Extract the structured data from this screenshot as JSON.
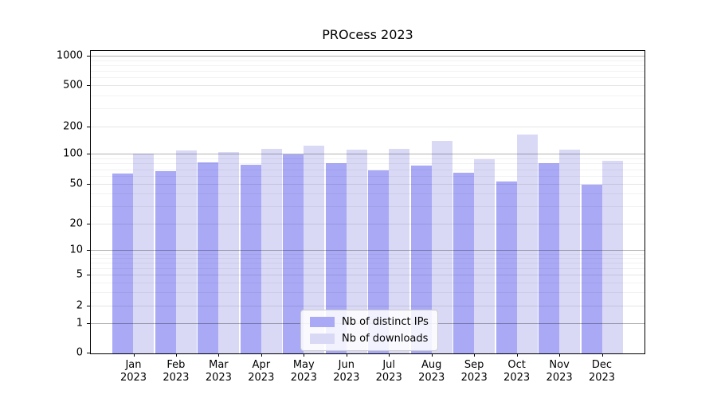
{
  "chart_data": {
    "type": "bar",
    "title": "PROcess 2023",
    "categories": [
      "Jan",
      "Feb",
      "Mar",
      "Apr",
      "May",
      "Jun",
      "Jul",
      "Aug",
      "Sep",
      "Oct",
      "Nov",
      "Dec"
    ],
    "category_year": "2023",
    "series": [
      {
        "name": "Nb of distinct IPs",
        "color": "#a9a9f6",
        "values": [
          65,
          68,
          84,
          79,
          100,
          82,
          70,
          78,
          66,
          54,
          82,
          50
        ]
      },
      {
        "name": "Nb of downloads",
        "color": "#d9d9f6",
        "values": [
          102,
          111,
          106,
          115,
          125,
          113,
          115,
          142,
          90,
          166,
          112,
          86
        ]
      }
    ],
    "yticks": [
      0,
      1,
      2,
      5,
      10,
      20,
      50,
      100,
      200,
      500,
      1000
    ],
    "yscale": "symlog",
    "ylim": [
      0,
      1400
    ],
    "grid": "horizontal",
    "legend_position": "lower center"
  }
}
